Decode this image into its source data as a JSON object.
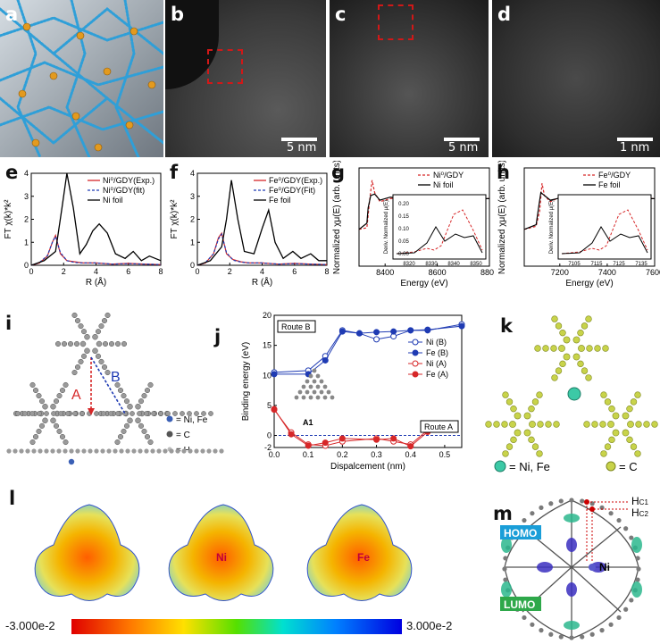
{
  "labels": {
    "a": "a",
    "b": "b",
    "c": "c",
    "d": "d",
    "e": "e",
    "f": "f",
    "g": "g",
    "h": "h",
    "i": "i",
    "j": "j",
    "k": "k",
    "l": "l",
    "m": "m"
  },
  "stem": {
    "b_scale": "5 nm",
    "c_scale": "5 nm",
    "d_scale": "1 nm"
  },
  "panel_e": {
    "ylabel": "FT χ(k)*k²",
    "xlabel": "R (Å)",
    "legend": [
      "Ni⁰/GDY(Exp.)",
      "Ni⁰/GDY(fit)",
      "Ni foil"
    ],
    "yticks": [
      "0",
      "1",
      "2",
      "3",
      "4"
    ],
    "xticks": [
      "0",
      "2",
      "4",
      "6",
      "8"
    ],
    "colors": {
      "exp": "#d62728",
      "fit": "#1f3bb3",
      "foil": "#000000"
    }
  },
  "panel_f": {
    "ylabel": "FT χ(k)*k²",
    "xlabel": "R (Å)",
    "legend": [
      "Fe⁰/GDY(Exp.)",
      "Fe⁰/GDY(Fit)",
      "Fe foil"
    ],
    "yticks": [
      "0",
      "1",
      "2",
      "3",
      "4"
    ],
    "xticks": [
      "0",
      "2",
      "4",
      "6",
      "8"
    ]
  },
  "panel_g": {
    "ylabel": "Normalized χμ(E) (arb. units)",
    "xlabel": "Energy (eV)",
    "legend": [
      "Ni⁰/GDY",
      "Ni foil"
    ],
    "xticks": [
      "8400",
      "8600",
      "8800"
    ],
    "inset_ylabel": "Deriv. Normalized μ(E)",
    "inset_xticks": [
      "8320",
      "8330",
      "8340",
      "8350"
    ],
    "inset_yticks": [
      "0.00",
      "0.05",
      "0.10",
      "0.15",
      "0.20"
    ]
  },
  "panel_h": {
    "ylabel": "Normalized χμ(E) (arb. units)",
    "xlabel": "Energy (eV)",
    "legend": [
      "Fe⁰/GDY",
      "Fe foil"
    ],
    "xticks": [
      "7200",
      "7400",
      "7600"
    ],
    "inset_ylabel": "Deriv. Normalized μ(E)",
    "inset_xticks": [
      "7105",
      "7115",
      "7125",
      "7135"
    ]
  },
  "panel_i": {
    "route_a": "A",
    "route_b": "B",
    "legend": [
      "= Ni, Fe",
      "= C",
      "= H"
    ]
  },
  "panel_j": {
    "ylabel": "Binding energy (eV)",
    "xlabel": "Dispalcement (nm)",
    "route_b_box": "Route B",
    "route_a_box": "Route A",
    "a1": "A1",
    "legend": [
      "Ni (B)",
      "Fe (B)",
      "Ni (A)",
      "Fe (A)"
    ],
    "yticks": [
      "20",
      "15",
      "10",
      "5",
      "0",
      "-2"
    ],
    "xticks": [
      "0.0",
      "0.1",
      "0.2",
      "0.3",
      "0.4",
      "0.5"
    ]
  },
  "panel_k": {
    "legend": [
      "= Ni, Fe",
      "= C"
    ]
  },
  "panel_l": {
    "ni": "Ni",
    "fe": "Fe",
    "scale_min": "-3.000e-2",
    "scale_max": "3.000e-2"
  },
  "panel_m": {
    "hc1": "H",
    "hc1_sub": "C1",
    "hc2": "H",
    "hc2_sub": "C2",
    "homo": "HOMO",
    "lumo": "LUMO",
    "ni": "Ni"
  },
  "chart_data": [
    {
      "type": "line",
      "title": "",
      "xlabel": "R (Å)",
      "ylabel": "FT χ(k)*k²",
      "xlim": [
        0,
        8
      ],
      "ylim": [
        0,
        4
      ],
      "series": [
        {
          "name": "Ni⁰/GDY(Exp.)",
          "x": [
            0,
            0.5,
            1,
            1.3,
            1.5,
            1.8,
            2.2,
            2.7,
            3.2,
            4,
            5,
            6,
            7,
            8
          ],
          "y": [
            0,
            0.1,
            0.4,
            1.0,
            1.3,
            0.5,
            0.2,
            0.15,
            0.1,
            0.1,
            0.05,
            0.08,
            0.05,
            0.03
          ]
        },
        {
          "name": "Ni⁰/GDY(fit)",
          "x": [
            0,
            0.5,
            1,
            1.3,
            1.5,
            1.8,
            2.2,
            2.7,
            3.2,
            4,
            5,
            6,
            7,
            8
          ],
          "y": [
            0,
            0.12,
            0.42,
            1.0,
            1.25,
            0.55,
            0.2,
            0.12,
            0.1,
            0.1,
            0.05,
            0.07,
            0.05,
            0.03
          ]
        },
        {
          "name": "Ni foil",
          "x": [
            0,
            0.8,
            1.5,
            1.9,
            2.2,
            2.6,
            3.0,
            3.4,
            3.8,
            4.2,
            4.7,
            5.2,
            5.8,
            6.3,
            6.8,
            7.3,
            8
          ],
          "y": [
            0,
            0.2,
            0.6,
            2.5,
            4.5,
            2.5,
            0.5,
            0.9,
            1.5,
            1.8,
            1.4,
            0.5,
            0.3,
            0.6,
            0.2,
            0.4,
            0.2
          ]
        }
      ]
    },
    {
      "type": "line",
      "title": "",
      "xlabel": "R (Å)",
      "ylabel": "FT χ(k)*k²",
      "xlim": [
        0,
        8
      ],
      "ylim": [
        0,
        4
      ],
      "series": [
        {
          "name": "Fe⁰/GDY(Exp.)",
          "x": [
            0,
            0.5,
            1,
            1.3,
            1.5,
            1.8,
            2.2,
            2.7,
            3.2,
            4,
            5,
            6,
            7,
            8
          ],
          "y": [
            0,
            0.1,
            0.5,
            1.2,
            1.4,
            0.5,
            0.25,
            0.15,
            0.1,
            0.1,
            0.05,
            0.08,
            0.05,
            0.03
          ]
        },
        {
          "name": "Fe⁰/GDY(Fit)",
          "x": [
            0,
            0.5,
            1,
            1.3,
            1.5,
            1.8,
            2.2,
            2.7,
            3.2,
            4,
            5,
            6,
            7,
            8
          ],
          "y": [
            0,
            0.12,
            0.5,
            1.15,
            1.35,
            0.55,
            0.22,
            0.14,
            0.1,
            0.1,
            0.05,
            0.07,
            0.05,
            0.03
          ]
        },
        {
          "name": "Fe foil",
          "x": [
            0,
            0.8,
            1.5,
            1.8,
            2.1,
            2.5,
            2.9,
            3.5,
            4.0,
            4.4,
            4.8,
            5.3,
            5.9,
            6.4,
            7.0,
            7.5,
            8
          ],
          "y": [
            0,
            0.2,
            0.8,
            2.0,
            3.7,
            2.0,
            0.6,
            0.5,
            1.6,
            2.4,
            1.0,
            0.3,
            0.6,
            0.3,
            0.5,
            0.2,
            0.2
          ]
        }
      ]
    },
    {
      "type": "line",
      "title": "",
      "xlabel": "Energy (eV)",
      "ylabel": "Normalized χμ(E) (arb. units)",
      "xlim": [
        8300,
        8800
      ],
      "series": [
        {
          "name": "Ni⁰/GDY",
          "x": [
            8300,
            8330,
            8340,
            8350,
            8360,
            8380,
            8420,
            8460,
            8500,
            8560,
            8620,
            8680,
            8740,
            8800
          ],
          "y": [
            0,
            0.05,
            0.9,
            1.6,
            1.2,
            0.9,
            1.0,
            1.05,
            0.95,
            1.02,
            1.0,
            0.98,
            1.0,
            1.0
          ]
        },
        {
          "name": "Ni foil",
          "x": [
            8300,
            8330,
            8335,
            8345,
            8360,
            8380,
            8420,
            8460,
            8500,
            8560,
            8620,
            8680,
            8740,
            8800
          ],
          "y": [
            0,
            0.2,
            0.7,
            1.1,
            1.15,
            0.95,
            1.05,
            1.0,
            0.9,
            1.05,
            1.0,
            0.97,
            1.0,
            1.0
          ]
        }
      ]
    },
    {
      "type": "line",
      "title": "",
      "xlabel": "Energy (eV)",
      "ylabel": "Normalized χμ(E) (arb. units)",
      "xlim": [
        7050,
        7600
      ],
      "series": [
        {
          "name": "Fe⁰/GDY",
          "x": [
            7050,
            7100,
            7115,
            7125,
            7135,
            7160,
            7200,
            7240,
            7300,
            7360,
            7420,
            7480,
            7540,
            7600
          ],
          "y": [
            0,
            0.1,
            0.6,
            1.5,
            1.1,
            0.9,
            1.05,
            0.95,
            1.02,
            0.98,
            1.0,
            1.0,
            1.0,
            1.0
          ]
        },
        {
          "name": "Fe foil",
          "x": [
            7050,
            7100,
            7112,
            7120,
            7135,
            7160,
            7200,
            7240,
            7300,
            7360,
            7420,
            7480,
            7540,
            7600
          ],
          "y": [
            0,
            0.15,
            0.8,
            1.2,
            1.1,
            0.95,
            1.02,
            0.97,
            1.0,
            0.98,
            1.0,
            1.0,
            1.0,
            1.0
          ]
        }
      ]
    },
    {
      "type": "line",
      "title": "",
      "xlabel": "Dispalcement (nm)",
      "ylabel": "Binding energy (eV)",
      "xlim": [
        0,
        0.55
      ],
      "ylim": [
        -2,
        20
      ],
      "series": [
        {
          "name": "Ni (B)",
          "x": [
            0,
            0.1,
            0.15,
            0.2,
            0.25,
            0.3,
            0.35,
            0.4,
            0.45,
            0.55
          ],
          "y": [
            10.5,
            10.8,
            13.2,
            17.5,
            17.0,
            16.0,
            16.5,
            17.5,
            17.5,
            18.5
          ]
        },
        {
          "name": "Fe (B)",
          "x": [
            0,
            0.1,
            0.15,
            0.2,
            0.25,
            0.3,
            0.35,
            0.4,
            0.45,
            0.55
          ],
          "y": [
            10.2,
            10.2,
            12.5,
            17.3,
            17.0,
            17.2,
            17.3,
            17.5,
            17.6,
            18.2
          ]
        },
        {
          "name": "Ni (A)",
          "x": [
            0,
            0.05,
            0.1,
            0.15,
            0.2,
            0.3,
            0.35,
            0.4,
            0.45
          ],
          "y": [
            4.3,
            0.5,
            -1.5,
            -1.7,
            -1.0,
            -0.5,
            -1.0,
            -1.5,
            0.9
          ]
        },
        {
          "name": "Fe (A)",
          "x": [
            0,
            0.05,
            0.1,
            0.15,
            0.2,
            0.3,
            0.35,
            0.4,
            0.45
          ],
          "y": [
            4.4,
            0.2,
            -1.7,
            -1.2,
            -0.5,
            -0.7,
            -0.5,
            -1.8,
            0.6
          ]
        }
      ]
    }
  ]
}
